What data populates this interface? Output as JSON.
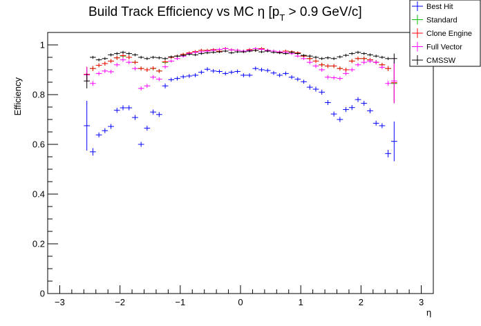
{
  "chart_data": {
    "type": "scatter",
    "title_main": "Build Track Efficiency vs MC η [p",
    "title_sub": "T",
    "title_tail": " > 0.9 GeV/c]",
    "xlabel": "η",
    "ylabel": "Efficiency",
    "xlim": [
      -3.2,
      3.2
    ],
    "ylim": [
      0,
      1.05
    ],
    "grid": false,
    "legend_position": "top-right",
    "xticks": [
      -3,
      -2,
      -1,
      0,
      1,
      2,
      3
    ],
    "xtick_labels": [
      "−3",
      "−2",
      "−1",
      "0",
      "1",
      "2",
      "3"
    ],
    "yticks": [
      0,
      0.2,
      0.4,
      0.6,
      0.8,
      1
    ],
    "ytick_labels": [
      "0",
      "0.2",
      "0.4",
      "0.6",
      "0.8",
      "1"
    ],
    "bin_width": 0.1,
    "x": [
      -2.55,
      -2.45,
      -2.35,
      -2.25,
      -2.15,
      -2.05,
      -1.95,
      -1.85,
      -1.75,
      -1.65,
      -1.55,
      -1.45,
      -1.35,
      -1.25,
      -1.15,
      -1.05,
      -0.95,
      -0.85,
      -0.75,
      -0.65,
      -0.55,
      -0.45,
      -0.35,
      -0.25,
      -0.15,
      -0.05,
      0.05,
      0.15,
      0.25,
      0.35,
      0.45,
      0.55,
      0.65,
      0.75,
      0.85,
      0.95,
      1.05,
      1.15,
      1.25,
      1.35,
      1.45,
      1.55,
      1.65,
      1.75,
      1.85,
      1.95,
      2.05,
      2.15,
      2.25,
      2.35,
      2.45,
      2.55
    ],
    "series": [
      {
        "name": "Best Hit",
        "color": "#0000ff",
        "values": [
          0.675,
          0.57,
          0.638,
          0.655,
          0.672,
          0.737,
          0.747,
          0.747,
          0.708,
          0.6,
          0.665,
          0.73,
          0.72,
          0.835,
          0.86,
          0.865,
          0.872,
          0.875,
          0.878,
          0.89,
          0.902,
          0.895,
          0.893,
          0.885,
          0.89,
          0.893,
          0.878,
          0.878,
          0.905,
          0.9,
          0.897,
          0.887,
          0.878,
          0.885,
          0.87,
          0.862,
          0.852,
          0.83,
          0.822,
          0.81,
          0.768,
          0.722,
          0.7,
          0.74,
          0.748,
          0.78,
          0.765,
          0.735,
          0.685,
          0.675,
          0.563,
          0.612
        ],
        "errors": [
          0.1,
          0.015,
          0.01,
          0.01,
          0.01,
          0.01,
          0.01,
          0.01,
          0.01,
          0.01,
          0.01,
          0.01,
          0.01,
          0.01,
          0.008,
          0.008,
          0.008,
          0.008,
          0.008,
          0.008,
          0.008,
          0.008,
          0.008,
          0.008,
          0.008,
          0.008,
          0.008,
          0.008,
          0.008,
          0.008,
          0.008,
          0.008,
          0.008,
          0.008,
          0.008,
          0.008,
          0.008,
          0.01,
          0.01,
          0.01,
          0.01,
          0.01,
          0.01,
          0.01,
          0.01,
          0.01,
          0.01,
          0.01,
          0.01,
          0.01,
          0.015,
          0.08
        ]
      },
      {
        "name": "Standard",
        "color": "#00bb00",
        "values": [
          0.88,
          0.905,
          0.918,
          0.925,
          0.935,
          0.948,
          0.955,
          0.95,
          0.93,
          0.905,
          0.9,
          0.905,
          0.895,
          0.93,
          0.95,
          0.955,
          0.962,
          0.968,
          0.972,
          0.978,
          0.978,
          0.98,
          0.975,
          0.985,
          0.98,
          0.978,
          0.975,
          0.98,
          0.978,
          0.985,
          0.978,
          0.975,
          0.97,
          0.975,
          0.972,
          0.968,
          0.955,
          0.945,
          0.935,
          0.92,
          0.915,
          0.915,
          0.905,
          0.9,
          0.935,
          0.945,
          0.945,
          0.94,
          0.93,
          0.92,
          0.905,
          0.845
        ],
        "errors": [
          0.03,
          0.01,
          0.008,
          0.008,
          0.008,
          0.008,
          0.008,
          0.008,
          0.008,
          0.008,
          0.008,
          0.008,
          0.008,
          0.008,
          0.006,
          0.006,
          0.006,
          0.006,
          0.006,
          0.006,
          0.006,
          0.006,
          0.006,
          0.006,
          0.006,
          0.006,
          0.006,
          0.006,
          0.006,
          0.006,
          0.006,
          0.006,
          0.006,
          0.006,
          0.006,
          0.006,
          0.006,
          0.008,
          0.008,
          0.008,
          0.008,
          0.008,
          0.008,
          0.008,
          0.008,
          0.008,
          0.008,
          0.008,
          0.008,
          0.008,
          0.01,
          0.08
        ]
      },
      {
        "name": "Clone Engine",
        "color": "#ff0000",
        "values": [
          0.882,
          0.905,
          0.918,
          0.925,
          0.935,
          0.948,
          0.957,
          0.95,
          0.93,
          0.905,
          0.9,
          0.906,
          0.895,
          0.932,
          0.95,
          0.955,
          0.962,
          0.968,
          0.973,
          0.978,
          0.978,
          0.981,
          0.975,
          0.985,
          0.98,
          0.978,
          0.975,
          0.981,
          0.978,
          0.985,
          0.978,
          0.975,
          0.97,
          0.975,
          0.972,
          0.968,
          0.955,
          0.945,
          0.935,
          0.92,
          0.915,
          0.915,
          0.905,
          0.9,
          0.935,
          0.945,
          0.945,
          0.94,
          0.93,
          0.92,
          0.905,
          0.848
        ],
        "errors": [
          0.03,
          0.01,
          0.008,
          0.008,
          0.008,
          0.008,
          0.008,
          0.008,
          0.008,
          0.008,
          0.008,
          0.008,
          0.008,
          0.008,
          0.006,
          0.006,
          0.006,
          0.006,
          0.006,
          0.006,
          0.006,
          0.006,
          0.006,
          0.006,
          0.006,
          0.006,
          0.006,
          0.006,
          0.006,
          0.006,
          0.006,
          0.006,
          0.006,
          0.006,
          0.006,
          0.006,
          0.006,
          0.008,
          0.008,
          0.008,
          0.008,
          0.008,
          0.008,
          0.008,
          0.008,
          0.008,
          0.008,
          0.008,
          0.008,
          0.008,
          0.01,
          0.08
        ]
      },
      {
        "name": "Full Vector",
        "color": "#ff00ff",
        "values": [
          0.88,
          0.845,
          0.885,
          0.895,
          0.892,
          0.92,
          0.94,
          0.93,
          0.905,
          0.825,
          0.835,
          0.87,
          0.862,
          0.912,
          0.935,
          0.945,
          0.955,
          0.965,
          0.97,
          0.972,
          0.975,
          0.978,
          0.982,
          0.985,
          0.98,
          0.978,
          0.975,
          0.978,
          0.985,
          0.982,
          0.978,
          0.975,
          0.972,
          0.97,
          0.965,
          0.955,
          0.945,
          0.93,
          0.915,
          0.9,
          0.87,
          0.868,
          0.865,
          0.885,
          0.9,
          0.92,
          0.93,
          0.935,
          0.93,
          0.91,
          0.845,
          0.855
        ],
        "errors": [
          0.03,
          0.01,
          0.008,
          0.008,
          0.008,
          0.008,
          0.008,
          0.008,
          0.008,
          0.008,
          0.008,
          0.008,
          0.008,
          0.008,
          0.006,
          0.006,
          0.006,
          0.006,
          0.006,
          0.006,
          0.006,
          0.006,
          0.006,
          0.006,
          0.006,
          0.006,
          0.006,
          0.006,
          0.006,
          0.006,
          0.006,
          0.006,
          0.006,
          0.006,
          0.006,
          0.006,
          0.006,
          0.008,
          0.008,
          0.008,
          0.008,
          0.008,
          0.008,
          0.008,
          0.008,
          0.008,
          0.008,
          0.008,
          0.008,
          0.008,
          0.01,
          0.09
        ]
      },
      {
        "name": "CMSSW",
        "color": "#000000",
        "values": [
          0.855,
          0.95,
          0.94,
          0.945,
          0.96,
          0.965,
          0.97,
          0.965,
          0.96,
          0.95,
          0.945,
          0.95,
          0.948,
          0.945,
          0.952,
          0.955,
          0.958,
          0.962,
          0.96,
          0.965,
          0.968,
          0.97,
          0.972,
          0.975,
          0.968,
          0.972,
          0.972,
          0.975,
          0.978,
          0.972,
          0.975,
          0.97,
          0.968,
          0.965,
          0.97,
          0.965,
          0.958,
          0.955,
          0.95,
          0.945,
          0.948,
          0.945,
          0.952,
          0.958,
          0.965,
          0.97,
          0.965,
          0.96,
          0.955,
          0.95,
          0.945,
          0.945
        ],
        "errors": [
          0.03,
          0.006,
          0.006,
          0.006,
          0.006,
          0.006,
          0.006,
          0.006,
          0.006,
          0.006,
          0.006,
          0.006,
          0.006,
          0.006,
          0.005,
          0.005,
          0.005,
          0.005,
          0.005,
          0.005,
          0.005,
          0.005,
          0.005,
          0.005,
          0.005,
          0.005,
          0.005,
          0.005,
          0.005,
          0.005,
          0.005,
          0.005,
          0.005,
          0.005,
          0.005,
          0.005,
          0.005,
          0.006,
          0.006,
          0.006,
          0.006,
          0.006,
          0.006,
          0.006,
          0.006,
          0.006,
          0.006,
          0.006,
          0.006,
          0.006,
          0.006,
          0.02
        ]
      }
    ]
  }
}
